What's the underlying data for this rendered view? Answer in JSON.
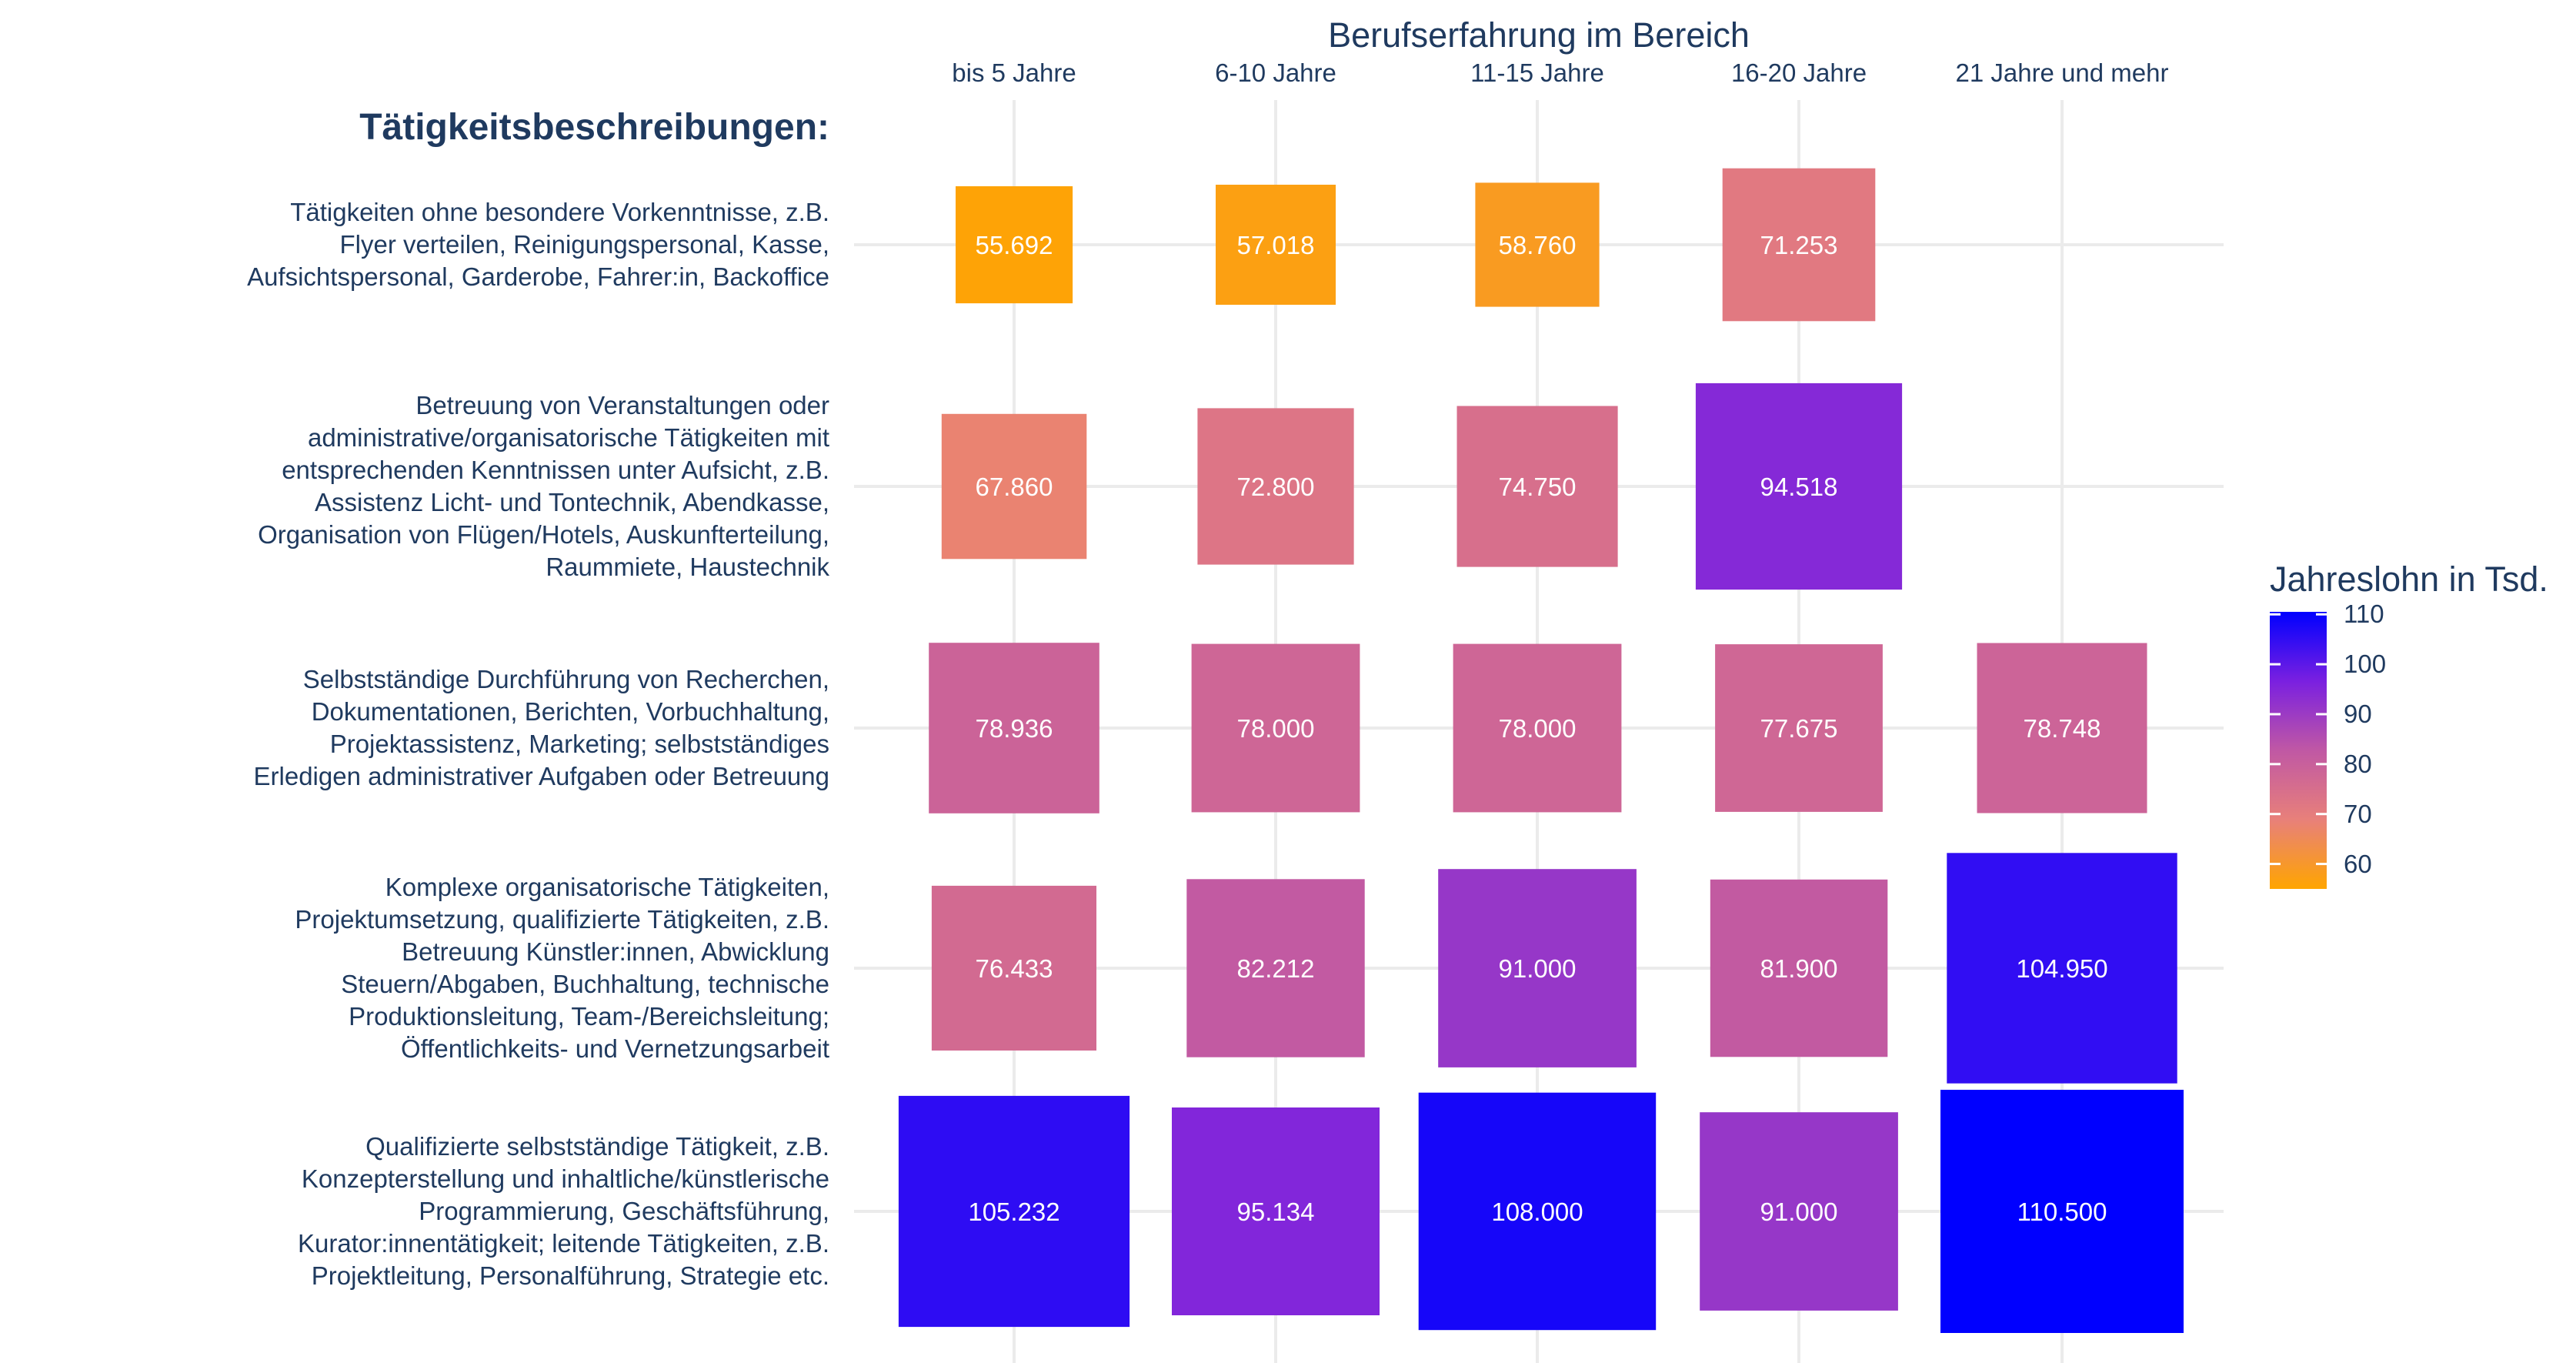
{
  "chart_data": {
    "type": "heatmap",
    "x_title": "Berufserfahrung im Bereich",
    "y_heading": "Tätigkeitsbeschreibungen:",
    "columns": [
      "bis 5 Jahre",
      "6-10 Jahre",
      "11-15 Jahre",
      "16-20 Jahre",
      "21 Jahre und mehr"
    ],
    "rows": [
      {
        "lines": [
          "Tätigkeiten ohne besondere Vorkenntnisse, z.B.",
          "Flyer verteilen, Reinigungspersonal, Kasse,",
          "Aufsichtspersonal, Garderobe, Fahrer:in, Backoffice"
        ],
        "values": [
          55.692,
          57.018,
          58.76,
          71.253,
          null
        ],
        "labels": [
          "55.692",
          "57.018",
          "58.760",
          "71.253",
          null
        ]
      },
      {
        "lines": [
          "Betreuung von Veranstaltungen oder",
          "administrative/organisatorische Tätigkeiten mit",
          "entsprechenden Kenntnissen unter Aufsicht, z.B.",
          "Assistenz Licht- und Tontechnik, Abendkasse,",
          "Organisation von Flügen/Hotels, Auskunfterteilung,",
          "Raummiete, Haustechnik"
        ],
        "values": [
          67.86,
          72.8,
          74.75,
          94.518,
          null
        ],
        "labels": [
          "67.860",
          "72.800",
          "74.750",
          "94.518",
          null
        ]
      },
      {
        "lines": [
          "Selbstständige Durchführung von Recherchen,",
          "Dokumentationen, Berichten, Vorbuchhaltung,",
          "Projektassistenz, Marketing; selbstständiges",
          "Erledigen administrativer Aufgaben oder Betreuung"
        ],
        "values": [
          78.936,
          78.0,
          78.0,
          77.675,
          78.748
        ],
        "labels": [
          "78.936",
          "78.000",
          "78.000",
          "77.675",
          "78.748"
        ]
      },
      {
        "lines": [
          "Komplexe organisatorische Tätigkeiten,",
          "Projektumsetzung, qualifizierte Tätigkeiten, z.B.",
          "Betreuung Künstler:innen, Abwicklung",
          "Steuern/Abgaben, Buchhaltung, technische",
          "Produktionsleitung, Team-/Bereichsleitung;",
          "Öffentlichkeits- und Vernetzungsarbeit"
        ],
        "values": [
          76.433,
          82.212,
          91.0,
          81.9,
          104.95
        ],
        "labels": [
          "76.433",
          "82.212",
          "91.000",
          "81.900",
          "104.950"
        ]
      },
      {
        "lines": [
          "Qualifizierte selbstständige Tätigkeit, z.B.",
          "Konzepterstellung und inhaltliche/künstlerische",
          "Programmierung, Geschäftsführung,",
          "Kurator:innentätigkeit; leitende Tätigkeiten, z.B.",
          "Projektleitung, Personalführung, Strategie etc."
        ],
        "values": [
          105.232,
          95.134,
          108.0,
          91.0,
          110.5
        ],
        "labels": [
          "105.232",
          "95.134",
          "108.000",
          "91.000",
          "110.500"
        ]
      }
    ],
    "legend": {
      "title": "Jahreslohn in Tsd.",
      "ticks": [
        60,
        70,
        80,
        90,
        100,
        110
      ],
      "range": [
        55,
        110.5
      ],
      "colors": [
        "#ffa500",
        "#e8807a",
        "#c058a4",
        "#7a20e0",
        "#0000ff"
      ]
    },
    "grid": true
  }
}
